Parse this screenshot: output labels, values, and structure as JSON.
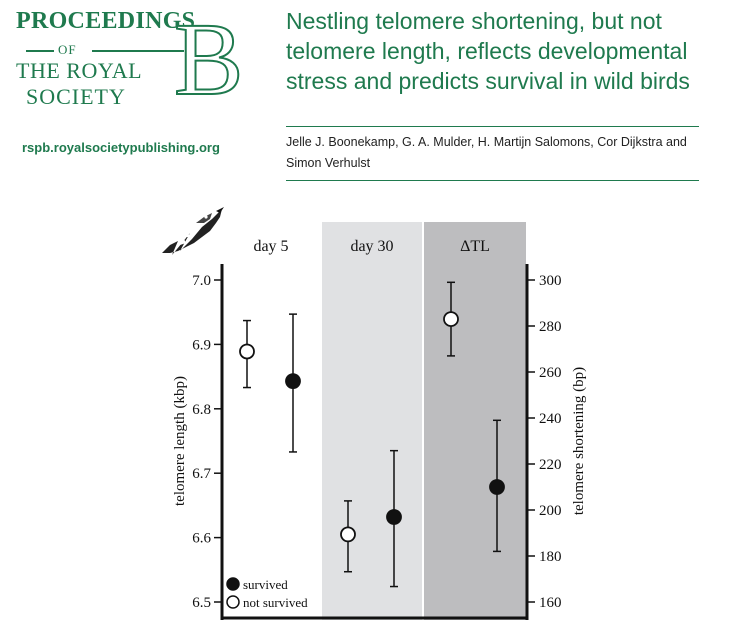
{
  "journal": {
    "logo_line1": "PROCEEDINGS",
    "logo_line2": "OF",
    "logo_line3": "THE ROYAL",
    "logo_line4": "SOCIETY",
    "logo_letter": "B",
    "url": "rspb.royalsocietypublishing.org"
  },
  "paper": {
    "title": "Nestling telomere shortening, but not telomere length, reflects developmental stress and predicts survival in wild birds",
    "authors": "Jelle J. Boonekamp, G. A. Mulder, H. Martijn Salomons, Cor Dijkstra and Simon Verhulst"
  },
  "colors": {
    "brand_green": "#1f7a4e",
    "panel_day30": "#e0e1e3",
    "panel_delta": "#bdbdbf"
  },
  "icons": {
    "bird": "bird-icon"
  },
  "chart_data": {
    "type": "scatter",
    "panels": [
      "day 5",
      "day 30",
      "ΔTL"
    ],
    "ylabel": "telomere length (kbp)",
    "ylim": [
      6.5,
      7.0
    ],
    "yticks": [
      "6.5",
      "6.6",
      "6.7",
      "6.8",
      "6.9",
      "7.0"
    ],
    "y2label": "telomere shortening (bp)",
    "y2lim": [
      160,
      300
    ],
    "y2ticks": [
      "160",
      "180",
      "200",
      "220",
      "240",
      "260",
      "280",
      "300"
    ],
    "legend_position": "bottom-left",
    "series": [
      {
        "name": "survived",
        "marker": "filled",
        "points": [
          {
            "panel": "day 5",
            "axis": "left",
            "mean": 6.843,
            "lower": 6.733,
            "upper": 6.947
          },
          {
            "panel": "day 30",
            "axis": "left",
            "mean": 6.632,
            "lower": 6.524,
            "upper": 6.735
          },
          {
            "panel": "ΔTL",
            "axis": "right",
            "mean": 210,
            "lower": 182,
            "upper": 239
          }
        ]
      },
      {
        "name": "not survived",
        "marker": "open",
        "points": [
          {
            "panel": "day 5",
            "axis": "left",
            "mean": 6.889,
            "lower": 6.833,
            "upper": 6.937
          },
          {
            "panel": "day 30",
            "axis": "left",
            "mean": 6.605,
            "lower": 6.547,
            "upper": 6.657
          },
          {
            "panel": "ΔTL",
            "axis": "right",
            "mean": 283,
            "lower": 267,
            "upper": 299
          }
        ]
      }
    ]
  }
}
